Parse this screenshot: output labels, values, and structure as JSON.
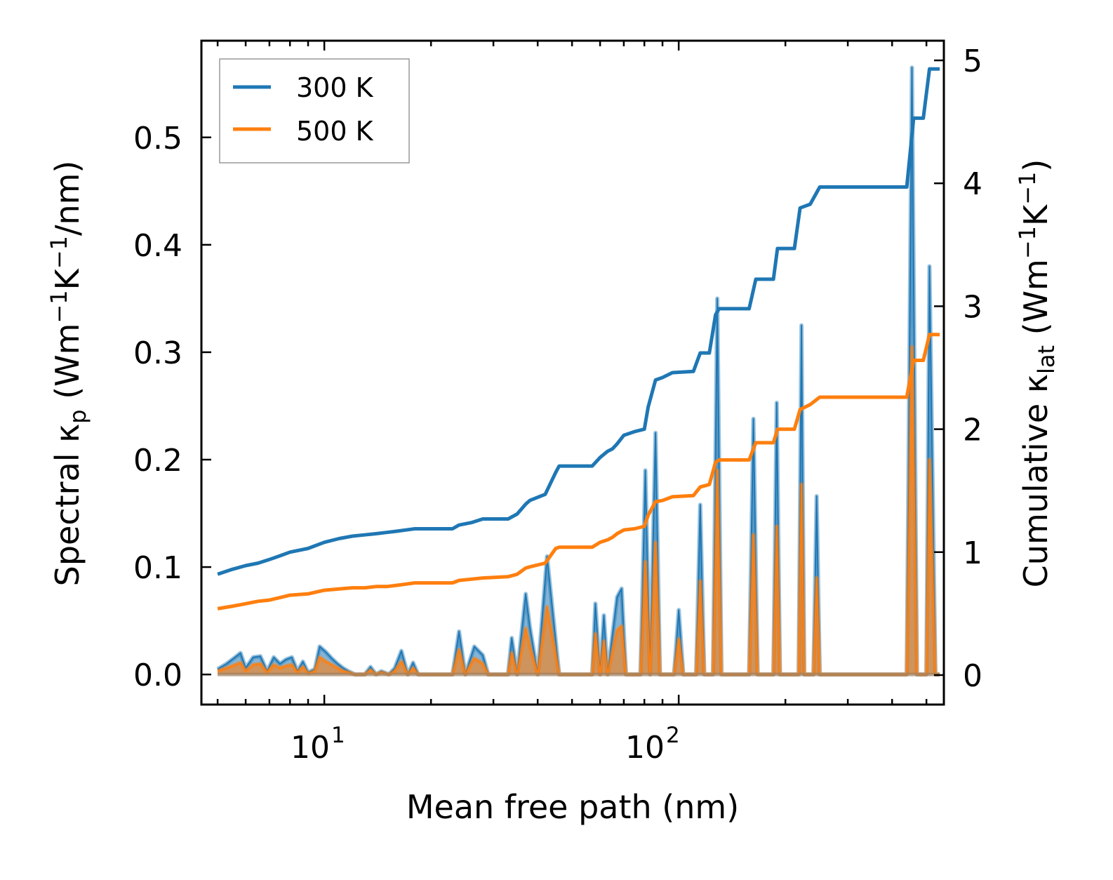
{
  "chart_data": {
    "type": "line",
    "xlabel": "Mean free path (nm)",
    "xscale": "log",
    "xlim": [
      4.5,
      560
    ],
    "ylabel_left": {
      "prefix": "Spectral κ",
      "sub": "p",
      "suffix": " (Wm",
      "sup1": "−1",
      "mid": "K",
      "sup2": "−1",
      "end": "/nm)"
    },
    "ylabel_right": {
      "prefix": "Cumulative κ",
      "sub": "lat",
      "suffix": " (Wm",
      "sup1": "−1",
      "mid": "K",
      "sup2": "−1",
      "end": ")"
    },
    "ylim_left": [
      -0.028,
      0.59
    ],
    "ylim_right": [
      -0.24,
      5.16
    ],
    "x_tick_labels": [
      {
        "value": 10,
        "base": "10",
        "exp": "1"
      },
      {
        "value": 100,
        "base": "10",
        "exp": "2"
      }
    ],
    "y_left_ticks": [
      0.0,
      0.1,
      0.2,
      0.3,
      0.4,
      0.5
    ],
    "y_left_tick_labels": [
      "0.0",
      "0.1",
      "0.2",
      "0.3",
      "0.4",
      "0.5"
    ],
    "y_right_ticks": [
      0,
      1,
      2,
      3,
      4,
      5
    ],
    "y_right_tick_labels": [
      "0",
      "1",
      "2",
      "3",
      "4",
      "5"
    ],
    "legend": {
      "position": "top-left",
      "entries": [
        "300 K",
        "500 K"
      ]
    },
    "colors": {
      "300 K": "#1f77b4",
      "500 K": "#ff7f0e",
      "fill_300": "#1f77b4",
      "fill_500": "#ff7f0e"
    },
    "cumulative_series": [
      {
        "name": "300 K",
        "color": "#1f77b4",
        "points": [
          [
            5,
            0.82
          ],
          [
            5.5,
            0.86
          ],
          [
            6,
            0.89
          ],
          [
            6.5,
            0.91
          ],
          [
            7,
            0.94
          ],
          [
            7.5,
            0.97
          ],
          [
            8,
            1.0
          ],
          [
            9,
            1.03
          ],
          [
            10,
            1.08
          ],
          [
            11,
            1.11
          ],
          [
            12,
            1.13
          ],
          [
            13,
            1.14
          ],
          [
            14,
            1.15
          ],
          [
            15,
            1.16
          ],
          [
            16,
            1.17
          ],
          [
            17,
            1.18
          ],
          [
            18,
            1.19
          ],
          [
            23,
            1.19
          ],
          [
            24,
            1.22
          ],
          [
            26,
            1.24
          ],
          [
            28,
            1.27
          ],
          [
            33,
            1.27
          ],
          [
            35,
            1.31
          ],
          [
            37,
            1.39
          ],
          [
            38,
            1.42
          ],
          [
            42,
            1.47
          ],
          [
            45,
            1.65
          ],
          [
            46,
            1.7
          ],
          [
            57,
            1.7
          ],
          [
            60,
            1.77
          ],
          [
            63,
            1.82
          ],
          [
            65,
            1.84
          ],
          [
            67,
            1.88
          ],
          [
            70,
            1.95
          ],
          [
            75,
            1.98
          ],
          [
            80,
            2.0
          ],
          [
            82,
            2.18
          ],
          [
            86,
            2.4
          ],
          [
            90,
            2.42
          ],
          [
            96,
            2.46
          ],
          [
            110,
            2.47
          ],
          [
            115,
            2.62
          ],
          [
            122,
            2.62
          ],
          [
            127,
            2.93
          ],
          [
            130,
            2.98
          ],
          [
            158,
            2.98
          ],
          [
            165,
            3.22
          ],
          [
            185,
            3.22
          ],
          [
            190,
            3.47
          ],
          [
            212,
            3.47
          ],
          [
            220,
            3.8
          ],
          [
            235,
            3.83
          ],
          [
            250,
            3.97
          ],
          [
            440,
            3.97
          ],
          [
            460,
            4.53
          ],
          [
            490,
            4.53
          ],
          [
            510,
            4.93
          ],
          [
            545,
            4.93
          ]
        ]
      },
      {
        "name": "500 K",
        "color": "#ff7f0e",
        "points": [
          [
            5,
            0.54
          ],
          [
            5.5,
            0.56
          ],
          [
            6,
            0.58
          ],
          [
            6.5,
            0.6
          ],
          [
            7,
            0.61
          ],
          [
            7.5,
            0.63
          ],
          [
            8,
            0.65
          ],
          [
            9,
            0.66
          ],
          [
            10,
            0.69
          ],
          [
            11,
            0.7
          ],
          [
            12,
            0.71
          ],
          [
            13,
            0.71
          ],
          [
            14,
            0.72
          ],
          [
            15,
            0.72
          ],
          [
            16,
            0.73
          ],
          [
            17,
            0.74
          ],
          [
            18,
            0.75
          ],
          [
            23,
            0.75
          ],
          [
            24,
            0.77
          ],
          [
            26,
            0.78
          ],
          [
            28,
            0.79
          ],
          [
            33,
            0.8
          ],
          [
            35,
            0.82
          ],
          [
            37,
            0.87
          ],
          [
            38,
            0.88
          ],
          [
            42,
            0.91
          ],
          [
            45,
            1.03
          ],
          [
            46,
            1.04
          ],
          [
            57,
            1.04
          ],
          [
            60,
            1.08
          ],
          [
            63,
            1.1
          ],
          [
            65,
            1.12
          ],
          [
            67,
            1.15
          ],
          [
            70,
            1.18
          ],
          [
            75,
            1.19
          ],
          [
            80,
            1.21
          ],
          [
            82,
            1.3
          ],
          [
            86,
            1.41
          ],
          [
            90,
            1.42
          ],
          [
            96,
            1.45
          ],
          [
            110,
            1.46
          ],
          [
            115,
            1.53
          ],
          [
            122,
            1.55
          ],
          [
            127,
            1.73
          ],
          [
            130,
            1.75
          ],
          [
            158,
            1.75
          ],
          [
            165,
            1.89
          ],
          [
            185,
            1.89
          ],
          [
            190,
            2.0
          ],
          [
            212,
            2.0
          ],
          [
            220,
            2.16
          ],
          [
            235,
            2.2
          ],
          [
            250,
            2.26
          ],
          [
            440,
            2.26
          ],
          [
            460,
            2.56
          ],
          [
            490,
            2.56
          ],
          [
            510,
            2.77
          ],
          [
            545,
            2.77
          ]
        ]
      }
    ],
    "spectral_series": [
      {
        "name": "300 K",
        "color": "#1f77b4",
        "points": [
          [
            5,
            0.005
          ],
          [
            5.3,
            0.01
          ],
          [
            5.6,
            0.016
          ],
          [
            5.8,
            0.02
          ],
          [
            6.0,
            0.006
          ],
          [
            6.3,
            0.016
          ],
          [
            6.6,
            0.017
          ],
          [
            6.9,
            0.003
          ],
          [
            7.2,
            0.016
          ],
          [
            7.5,
            0.01
          ],
          [
            7.8,
            0.014
          ],
          [
            8.1,
            0.016
          ],
          [
            8.4,
            0.003
          ],
          [
            8.7,
            0.012
          ],
          [
            9.0,
            0.002
          ],
          [
            9.4,
            0.005
          ],
          [
            9.7,
            0.026
          ],
          [
            10.1,
            0.021
          ],
          [
            10.5,
            0.015
          ],
          [
            10.9,
            0.01
          ],
          [
            11.3,
            0.006
          ],
          [
            11.7,
            0.003
          ],
          [
            12.2,
            0.0
          ],
          [
            13.0,
            0.0
          ],
          [
            13.5,
            0.007
          ],
          [
            14.0,
            0.0
          ],
          [
            14.5,
            0.003
          ],
          [
            15.2,
            0.0
          ],
          [
            15.8,
            0.006
          ],
          [
            16.5,
            0.022
          ],
          [
            17.2,
            0.0
          ],
          [
            17.8,
            0.011
          ],
          [
            18.4,
            0.0
          ],
          [
            23.0,
            0.0
          ],
          [
            24.0,
            0.04
          ],
          [
            25.0,
            0.0
          ],
          [
            26.5,
            0.026
          ],
          [
            28.0,
            0.018
          ],
          [
            29.0,
            0.0
          ],
          [
            33.0,
            0.0
          ],
          [
            33.8,
            0.034
          ],
          [
            35.0,
            0.0
          ],
          [
            37.0,
            0.075
          ],
          [
            38.0,
            0.045
          ],
          [
            40.0,
            0.0
          ],
          [
            42.5,
            0.11
          ],
          [
            46.0,
            0.0
          ],
          [
            57.0,
            0.0
          ],
          [
            58.2,
            0.066
          ],
          [
            60.0,
            0.0
          ],
          [
            61.5,
            0.055
          ],
          [
            63.0,
            0.0
          ],
          [
            67.0,
            0.072
          ],
          [
            69.0,
            0.08
          ],
          [
            71.0,
            0.0
          ],
          [
            78.0,
            0.0
          ],
          [
            80.5,
            0.19
          ],
          [
            83.0,
            0.0
          ],
          [
            86.0,
            0.225
          ],
          [
            88.5,
            0.0
          ],
          [
            97.0,
            0.0
          ],
          [
            100.0,
            0.06
          ],
          [
            103.0,
            0.0
          ],
          [
            112.0,
            0.0
          ],
          [
            115.0,
            0.158
          ],
          [
            118.0,
            0.0
          ],
          [
            125.0,
            0.0
          ],
          [
            128.5,
            0.35
          ],
          [
            132.0,
            0.0
          ],
          [
            158.0,
            0.0
          ],
          [
            162.5,
            0.238
          ],
          [
            167.0,
            0.0
          ],
          [
            185.0,
            0.0
          ],
          [
            189.0,
            0.253
          ],
          [
            193.0,
            0.0
          ],
          [
            218.0,
            0.0
          ],
          [
            222.0,
            0.325
          ],
          [
            226.0,
            0.0
          ],
          [
            240.0,
            0.0
          ],
          [
            245.0,
            0.166
          ],
          [
            250.0,
            0.0
          ],
          [
            440.0,
            0.0
          ],
          [
            455.0,
            0.565
          ],
          [
            470.0,
            0.0
          ],
          [
            500.0,
            0.0
          ],
          [
            510.0,
            0.38
          ],
          [
            530.0,
            0.0
          ],
          [
            545.0,
            0.0
          ]
        ]
      },
      {
        "name": "500 K",
        "color": "#ff7f0e",
        "points": [
          [
            5,
            0.003
          ],
          [
            5.3,
            0.006
          ],
          [
            5.6,
            0.009
          ],
          [
            5.8,
            0.011
          ],
          [
            6.0,
            0.003
          ],
          [
            6.3,
            0.009
          ],
          [
            6.6,
            0.01
          ],
          [
            6.9,
            0.002
          ],
          [
            7.2,
            0.009
          ],
          [
            7.5,
            0.006
          ],
          [
            7.8,
            0.008
          ],
          [
            8.1,
            0.009
          ],
          [
            8.4,
            0.002
          ],
          [
            8.7,
            0.007
          ],
          [
            9.0,
            0.001
          ],
          [
            9.4,
            0.003
          ],
          [
            9.7,
            0.016
          ],
          [
            10.1,
            0.012
          ],
          [
            10.5,
            0.009
          ],
          [
            10.9,
            0.006
          ],
          [
            11.3,
            0.003
          ],
          [
            11.7,
            0.002
          ],
          [
            12.2,
            0.0
          ],
          [
            13.0,
            0.0
          ],
          [
            13.5,
            0.004
          ],
          [
            14.0,
            0.0
          ],
          [
            14.5,
            0.002
          ],
          [
            15.2,
            0.0
          ],
          [
            15.8,
            0.003
          ],
          [
            16.5,
            0.012
          ],
          [
            17.2,
            0.0
          ],
          [
            17.8,
            0.006
          ],
          [
            18.4,
            0.0
          ],
          [
            23.0,
            0.0
          ],
          [
            24.0,
            0.023
          ],
          [
            25.0,
            0.0
          ],
          [
            26.5,
            0.015
          ],
          [
            28.0,
            0.01
          ],
          [
            29.0,
            0.0
          ],
          [
            33.0,
            0.0
          ],
          [
            33.8,
            0.02
          ],
          [
            35.0,
            0.0
          ],
          [
            37.0,
            0.043
          ],
          [
            38.0,
            0.026
          ],
          [
            40.0,
            0.0
          ],
          [
            42.5,
            0.063
          ],
          [
            46.0,
            0.0
          ],
          [
            57.0,
            0.0
          ],
          [
            58.2,
            0.038
          ],
          [
            60.0,
            0.0
          ],
          [
            61.5,
            0.031
          ],
          [
            63.0,
            0.0
          ],
          [
            67.0,
            0.041
          ],
          [
            69.0,
            0.045
          ],
          [
            71.0,
            0.0
          ],
          [
            78.0,
            0.0
          ],
          [
            80.5,
            0.105
          ],
          [
            83.0,
            0.0
          ],
          [
            86.0,
            0.123
          ],
          [
            88.5,
            0.0
          ],
          [
            97.0,
            0.0
          ],
          [
            100.0,
            0.033
          ],
          [
            103.0,
            0.0
          ],
          [
            112.0,
            0.0
          ],
          [
            115.0,
            0.087
          ],
          [
            118.0,
            0.0
          ],
          [
            125.0,
            0.0
          ],
          [
            128.5,
            0.19
          ],
          [
            132.0,
            0.0
          ],
          [
            158.0,
            0.0
          ],
          [
            162.5,
            0.13
          ],
          [
            167.0,
            0.0
          ],
          [
            185.0,
            0.0
          ],
          [
            189.0,
            0.138
          ],
          [
            193.0,
            0.0
          ],
          [
            218.0,
            0.0
          ],
          [
            222.0,
            0.177
          ],
          [
            226.0,
            0.0
          ],
          [
            240.0,
            0.0
          ],
          [
            245.0,
            0.09
          ],
          [
            250.0,
            0.0
          ],
          [
            440.0,
            0.0
          ],
          [
            455.0,
            0.305
          ],
          [
            470.0,
            0.0
          ],
          [
            500.0,
            0.0
          ],
          [
            510.0,
            0.2
          ],
          [
            530.0,
            0.0
          ],
          [
            545.0,
            0.0
          ]
        ]
      }
    ]
  }
}
